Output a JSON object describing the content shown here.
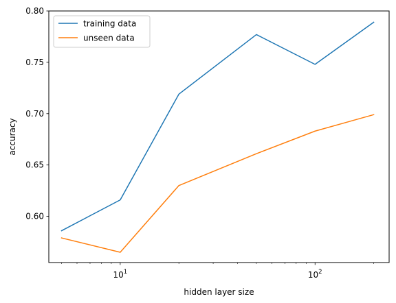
{
  "chart_data": {
    "type": "line",
    "xlabel": "hidden layer size",
    "ylabel": "accuracy",
    "xscale": "log",
    "xlim": [
      4.3,
      240
    ],
    "ylim": [
      0.555,
      0.8
    ],
    "x_ticks": [
      {
        "value": 10,
        "base": "10",
        "exp": "1"
      },
      {
        "value": 100,
        "base": "10",
        "exp": "2"
      }
    ],
    "y_ticks": [
      {
        "value": 0.6,
        "label": "0.60"
      },
      {
        "value": 0.65,
        "label": "0.65"
      },
      {
        "value": 0.7,
        "label": "0.70"
      },
      {
        "value": 0.75,
        "label": "0.75"
      },
      {
        "value": 0.8,
        "label": "0.80"
      }
    ],
    "grid": false,
    "legend_position": "top-left",
    "x": [
      5,
      10,
      20,
      50,
      100,
      200
    ],
    "series": [
      {
        "name": "training data",
        "color": "#1f77b4",
        "values": [
          0.586,
          0.616,
          0.719,
          0.777,
          0.748,
          0.789
        ]
      },
      {
        "name": "unseen data",
        "color": "#ff7f0e",
        "values": [
          0.579,
          0.565,
          0.63,
          0.661,
          0.683,
          0.699
        ]
      }
    ]
  }
}
